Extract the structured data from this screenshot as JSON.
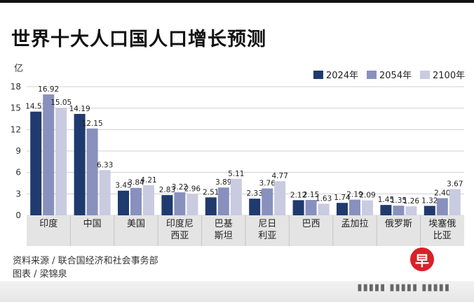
{
  "header": {
    "title": "世界十大人口国人口增长预测"
  },
  "footer": {
    "source": "资料来源 / 联合国经济和社会事务部",
    "credit": "图表 / 梁锦泉",
    "logo_char": "早"
  },
  "colors": {
    "series": [
      "#1f3a6e",
      "#8891bd",
      "#c9cbe1"
    ],
    "grid": "#d0d0d0",
    "axis_band": "#e4e4e4"
  },
  "chart_data": {
    "type": "bar",
    "title": "世界十大人口国人口增长预测",
    "ylabel": "亿",
    "ylim": [
      0,
      18
    ],
    "yticks": [
      0,
      3,
      6,
      9,
      12,
      15,
      18
    ],
    "grid": true,
    "legend_position": "top-right",
    "categories": [
      "印度",
      "中国",
      "美国",
      "印度尼\n西亚",
      "巴基\n斯坦",
      "尼日\n利亚",
      "巴西",
      "孟加拉",
      "俄罗斯",
      "埃塞俄\n比亚"
    ],
    "series": [
      {
        "name": "2024年",
        "values": [
          14.51,
          14.19,
          3.45,
          2.83,
          2.51,
          2.33,
          2.12,
          1.74,
          1.45,
          1.32
        ]
      },
      {
        "name": "2054年",
        "values": [
          16.92,
          12.15,
          3.84,
          3.22,
          3.89,
          3.76,
          2.15,
          2.19,
          1.35,
          2.4
        ]
      },
      {
        "name": "2100年",
        "values": [
          15.05,
          6.33,
          4.21,
          2.96,
          5.11,
          4.77,
          1.63,
          2.09,
          1.26,
          3.67
        ]
      }
    ]
  }
}
